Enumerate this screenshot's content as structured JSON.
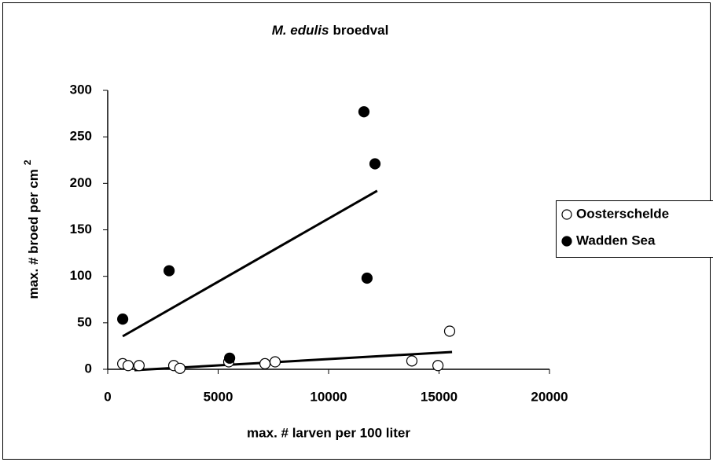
{
  "chart_data": {
    "type": "scatter",
    "title": [
      "M. edulis",
      "broedval"
    ],
    "xlabel": "max. # larven per 100 liter",
    "ylabel": [
      "max. # broed per cm",
      "2"
    ],
    "xlim": [
      0,
      20000
    ],
    "xticks": [
      0,
      5000,
      10000,
      15000,
      20000
    ],
    "ylim": [
      0,
      300
    ],
    "yticks": [
      0,
      50,
      100,
      150,
      200,
      250,
      300
    ],
    "grid": false,
    "legend": "right",
    "series": [
      {
        "name": "Oosterschelde",
        "color": "#000000",
        "marker_fill": "#ffffff",
        "x": [
          680,
          925,
          1420,
          2990,
          3270,
          5480,
          7120,
          7580,
          13770,
          14950,
          15480
        ],
        "values": [
          6,
          4,
          4,
          4,
          1,
          8,
          6,
          8,
          9,
          4,
          41
        ],
        "trend": {
          "x": [
            1210,
            15590
          ],
          "values": [
            -1,
            18.6
          ]
        }
      },
      {
        "name": "Wadden Sea",
        "color": "#000000",
        "marker_fill": "#000000",
        "x": [
          680,
          2780,
          5520,
          11600,
          12100,
          11740
        ],
        "values": [
          54,
          106,
          12,
          277,
          221,
          98
        ],
        "trend": {
          "x": [
            680,
            12200
          ],
          "values": [
            35.5,
            192
          ]
        }
      }
    ]
  }
}
